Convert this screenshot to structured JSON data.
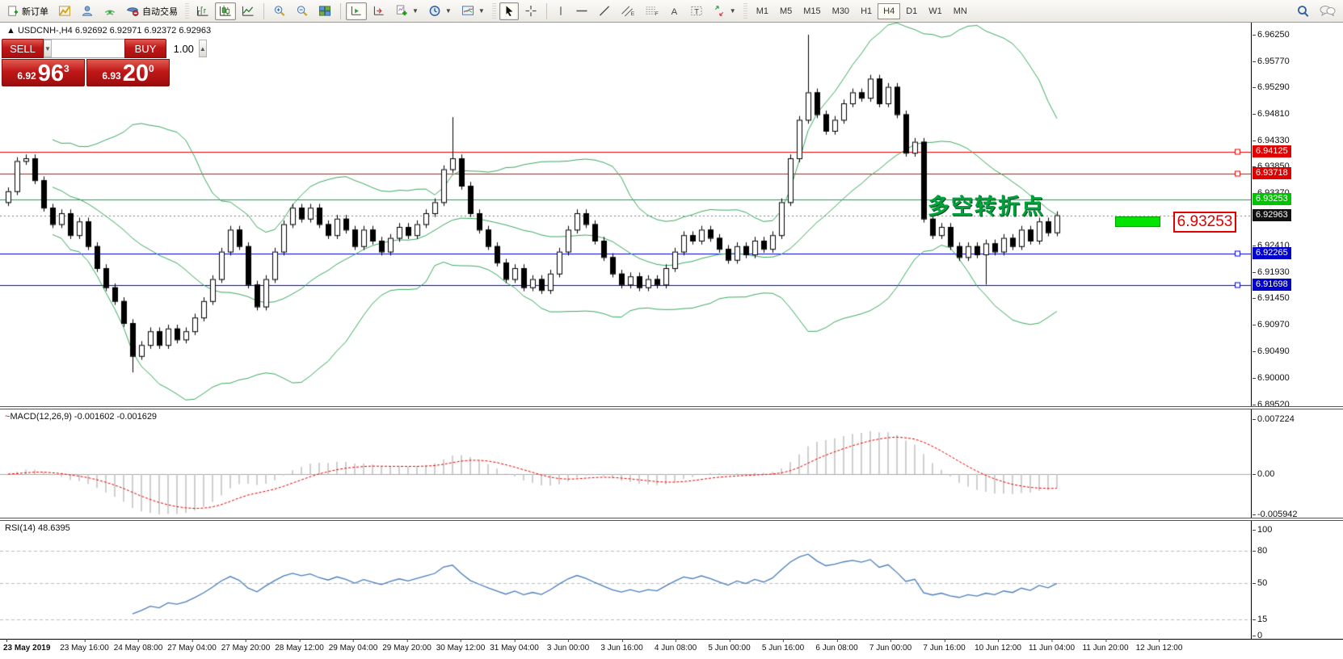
{
  "toolbar": {
    "new_order_label": "新订单",
    "auto_trading_label": "自动交易",
    "timeframes": [
      "M1",
      "M5",
      "M15",
      "M30",
      "H1",
      "H4",
      "D1",
      "W1",
      "MN"
    ],
    "active_timeframe": "H4"
  },
  "chart": {
    "symbol_period": "USDCNH-,H4",
    "ohlc": "6.92692 6.92971 6.92372 6.92963"
  },
  "trade_panel": {
    "sell_label": "SELL",
    "buy_label": "BUY",
    "volume": "1.00",
    "sell_price_small": "6.92",
    "sell_price_big": "96",
    "sell_price_sup": "3",
    "buy_price_small": "6.93",
    "buy_price_big": "20",
    "buy_price_sup": "0"
  },
  "annotation": {
    "text": "多空转折点",
    "price_label": "6.93253"
  },
  "price_axis": {
    "ticks": [
      "6.96250",
      "6.95770",
      "6.95290",
      "6.94810",
      "6.94330",
      "6.93850",
      "6.93370",
      "6.92890",
      "6.92410",
      "6.91930",
      "6.91450",
      "6.90970",
      "6.90490",
      "6.90000",
      "6.89520"
    ],
    "tags": [
      {
        "value": 6.94125,
        "text": "6.94125",
        "color": "#e00000"
      },
      {
        "value": 6.93718,
        "text": "6.93718",
        "color": "#e00000"
      },
      {
        "value": 6.93253,
        "text": "6.93253",
        "color": "#00c400"
      },
      {
        "value": 6.92963,
        "text": "6.92963",
        "color": "#111111"
      },
      {
        "value": 6.92265,
        "text": "6.92265",
        "color": "#0000cc"
      },
      {
        "value": 6.91698,
        "text": "6.91698",
        "color": "#0000cc"
      }
    ]
  },
  "levels": [
    {
      "price": 6.94125,
      "color": "#ee0000",
      "style": "solid",
      "handle": true
    },
    {
      "price": 6.93718,
      "color": "#ee0000",
      "style": "solid",
      "handle": true
    },
    {
      "price": 6.93253,
      "color": "#00b050",
      "style": "solid",
      "handle": false
    },
    {
      "price": 6.92265,
      "color": "#0000dd",
      "style": "solid",
      "handle": true
    },
    {
      "price": 6.91698,
      "color": "#0000dd",
      "style": "solid",
      "handle": true
    }
  ],
  "current_price": {
    "value": 6.92963,
    "color": "#808080"
  },
  "macd": {
    "label": "MACD(12,26,9) -0.001602 -0.001629",
    "axis_labels": [
      "0.007224",
      "0.00",
      "-0.005942"
    ]
  },
  "rsi": {
    "label": "RSI(14) 48.6395",
    "axis_labels": [
      "100",
      "80",
      "50",
      "15",
      "0"
    ],
    "level_values": [
      80,
      50,
      15
    ]
  },
  "time_axis": {
    "labels": [
      "23 May 2019",
      "23 May 16:00",
      "24 May 08:00",
      "27 May 04:00",
      "27 May 20:00",
      "28 May 12:00",
      "29 May 04:00",
      "29 May 20:00",
      "30 May 12:00",
      "31 May 04:00",
      "3 Jun 00:00",
      "3 Jun 16:00",
      "4 Jun 08:00",
      "5 Jun 00:00",
      "5 Jun 16:00",
      "6 Jun 08:00",
      "7 Jun 00:00",
      "7 Jun 16:00",
      "10 Jun 12:00",
      "11 Jun 04:00",
      "11 Jun 20:00",
      "12 Jun 12:00"
    ]
  },
  "chart_data": {
    "type": "candlestick",
    "symbol": "USDCNH-",
    "period": "H4",
    "title": "USDCNH-,H4",
    "y_axis_range": [
      6.8952,
      6.9625
    ],
    "open_first": 6.932,
    "closes": [
      6.934,
      6.9395,
      6.94,
      6.936,
      6.931,
      6.928,
      6.93,
      6.926,
      6.9285,
      6.924,
      6.92,
      6.9165,
      6.914,
      6.91,
      6.904,
      6.906,
      6.9085,
      6.906,
      6.909,
      6.907,
      6.9085,
      6.911,
      6.914,
      6.918,
      6.923,
      6.927,
      6.924,
      6.917,
      6.913,
      6.918,
      6.923,
      6.928,
      6.931,
      6.929,
      6.931,
      6.928,
      6.926,
      6.929,
      6.927,
      6.924,
      6.927,
      6.925,
      6.923,
      6.9255,
      6.9275,
      6.926,
      6.928,
      6.93,
      6.932,
      6.938,
      6.94,
      6.935,
      6.93,
      6.927,
      6.924,
      6.921,
      6.918,
      6.92,
      6.9165,
      6.918,
      6.916,
      6.919,
      6.923,
      6.927,
      6.93,
      6.928,
      6.925,
      6.922,
      6.919,
      6.917,
      6.9185,
      6.9165,
      6.918,
      6.917,
      6.92,
      6.923,
      6.926,
      6.925,
      6.927,
      6.9255,
      6.9235,
      6.9215,
      6.924,
      6.9225,
      6.925,
      6.9235,
      6.926,
      6.932,
      6.94,
      6.947,
      6.952,
      6.948,
      6.945,
      6.947,
      6.95,
      6.952,
      6.951,
      6.9545,
      6.95,
      6.953,
      6.948,
      6.941,
      6.943,
      6.929,
      6.926,
      6.9275,
      6.924,
      6.922,
      6.924,
      6.9225,
      6.9245,
      6.923,
      6.9255,
      6.924,
      6.927,
      6.925,
      6.9285,
      6.9265,
      6.92963
    ],
    "wick_overrides": {
      "14": {
        "low": 6.901
      },
      "50": {
        "high": 6.9475
      },
      "90": {
        "high": 6.9625
      },
      "110": {
        "low": 6.917
      }
    },
    "default_wick": 0.0007,
    "indicators": {
      "bollinger_period": 20,
      "bollinger_dev": 2,
      "macd": [
        12,
        26,
        9
      ],
      "rsi_period": 14
    },
    "colors": {
      "up_candle": "#ffffff",
      "down_candle": "#000000",
      "candle_outline": "#000000",
      "bollinger": "#3aaa5f",
      "macd_hist": "#c4c4c4",
      "macd_signal": "#ee0000",
      "rsi_line": "#4a7ebb",
      "rsi_levels": "#bbbbbb",
      "grid": "#e8e8e8"
    }
  }
}
